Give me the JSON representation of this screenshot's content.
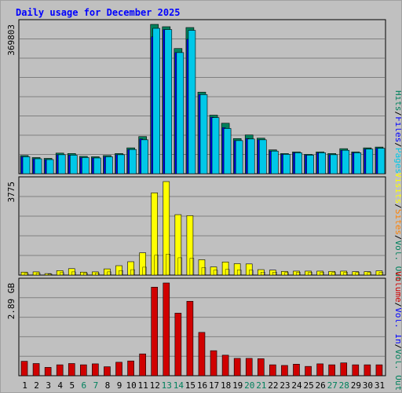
{
  "title": "Daily usage for December 2025",
  "colors": {
    "hits": "#00805c",
    "files": "#0000ff",
    "pages": "#00c8e8",
    "visits": "#ffff00",
    "sites": "#ff8000",
    "kbytes": "#d00000",
    "weekend": "#00805c",
    "weekday": "#000000"
  },
  "legend_top": [
    {
      "text": "Hits",
      "color": "#00805c"
    },
    {
      "text": "/",
      "color": "#000000"
    },
    {
      "text": "Files",
      "color": "#0000ff"
    },
    {
      "text": "/",
      "color": "#000000"
    },
    {
      "text": "Pages",
      "color": "#00c8e8"
    }
  ],
  "legend_mid": [
    {
      "text": "Visits",
      "color": "#ffff00"
    },
    {
      "text": "/",
      "color": "#000000"
    },
    {
      "text": "Sites",
      "color": "#ff8000"
    },
    {
      "text": "/",
      "color": "#000000"
    },
    {
      "text": "Vol. Out",
      "color": "#00805c"
    }
  ],
  "legend_bot": [
    {
      "text": "Volume",
      "color": "#d00000"
    },
    {
      "text": "/",
      "color": "#000000"
    },
    {
      "text": "Vol. In",
      "color": "#0000ff"
    },
    {
      "text": "/",
      "color": "#000000"
    },
    {
      "text": "Vol. Out",
      "color": "#00805c"
    }
  ],
  "chart_data": {
    "type": "bar",
    "title": "Daily usage for December 2025",
    "categories": [
      "1",
      "2",
      "3",
      "4",
      "5",
      "6",
      "7",
      "8",
      "9",
      "10",
      "11",
      "12",
      "13",
      "14",
      "15",
      "16",
      "17",
      "18",
      "19",
      "20",
      "21",
      "22",
      "23",
      "24",
      "25",
      "26",
      "27",
      "28",
      "29",
      "30",
      "31"
    ],
    "weekend_days": [
      "6",
      "7",
      "13",
      "14",
      "20",
      "21",
      "27",
      "28"
    ],
    "panels": [
      {
        "name": "hits-files-pages",
        "max_label": "369803",
        "ylim": [
          0,
          369803
        ],
        "series": [
          {
            "name": "Hits",
            "values": [
              45000,
              40000,
              38000,
              51000,
              50000,
              43000,
              42000,
              45000,
              50000,
              64000,
              92000,
              369803,
              364000,
              310000,
              362000,
              202000,
              145000,
              125000,
              87000,
              96000,
              88000,
              59000,
              50000,
              54000,
              48000,
              54000,
              50000,
              62000,
              54000,
              64000,
              66000
            ]
          },
          {
            "name": "Files",
            "values": [
              42000,
              37000,
              35000,
              47000,
              46000,
              40000,
              39000,
              42000,
              47000,
              60000,
              86000,
              339000,
              357000,
              300000,
              333000,
              196000,
              140000,
              114000,
              82000,
              87000,
              84000,
              56000,
              48000,
              52000,
              46000,
              52000,
              47000,
              58000,
              52000,
              61000,
              63000
            ]
          },
          {
            "name": "Pages",
            "values": [
              42000,
              37000,
              35000,
              47000,
              46000,
              40000,
              39000,
              42000,
              47000,
              60000,
              84000,
              360000,
              357000,
              300000,
              355000,
              196000,
              139000,
              112000,
              82000,
              86000,
              84000,
              56000,
              48000,
              52000,
              46000,
              52000,
              47000,
              58000,
              52000,
              61000,
              63000
            ]
          }
        ]
      },
      {
        "name": "visits-sites",
        "max_label": "3775",
        "ylim": [
          0,
          3775
        ],
        "series": [
          {
            "name": "Visits",
            "values": [
              120,
              130,
              60,
              180,
              260,
              120,
              130,
              250,
              380,
              540,
              900,
              3320,
              3775,
              2440,
              2400,
              620,
              330,
              530,
              460,
              450,
              220,
              200,
              150,
              160,
              160,
              160,
              150,
              160,
              140,
              140,
              170
            ]
          },
          {
            "name": "Sites",
            "values": [
              70,
              80,
              40,
              100,
              130,
              80,
              80,
              130,
              180,
              220,
              320,
              800,
              850,
              700,
              680,
              300,
              200,
              230,
              210,
              200,
              120,
              120,
              100,
              110,
              110,
              110,
              100,
              110,
              100,
              100,
              110
            ]
          }
        ]
      },
      {
        "name": "volume",
        "max_label": "2.89 GB",
        "ylim": [
          0,
          2.89
        ],
        "series": [
          {
            "name": "Volume",
            "values": [
              0.45,
              0.38,
              0.26,
              0.34,
              0.38,
              0.34,
              0.37,
              0.28,
              0.42,
              0.46,
              0.68,
              2.76,
              2.89,
              1.95,
              2.32,
              1.35,
              0.78,
              0.64,
              0.54,
              0.54,
              0.53,
              0.34,
              0.32,
              0.36,
              0.29,
              0.37,
              0.34,
              0.4,
              0.34,
              0.34,
              0.34
            ]
          }
        ]
      }
    ]
  }
}
